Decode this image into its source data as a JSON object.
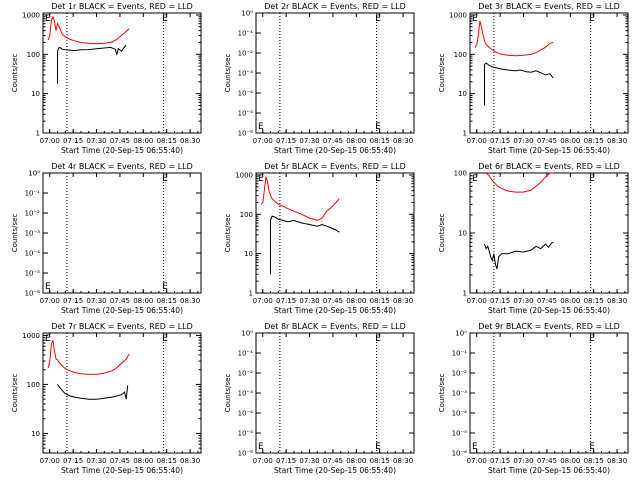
{
  "common": {
    "xlabel": "Start Time (20-Sep-15 06:55:40)",
    "ylabel": "Counts/sec",
    "xtick_labels": [
      "07:00",
      "07:15",
      "07:30",
      "07:45",
      "08:00",
      "08:15",
      "08:30"
    ],
    "vlines": [
      "07:11",
      "08:13"
    ],
    "marker_label": "E",
    "marker_time": "08:14",
    "colors": {
      "events": "#000000",
      "lld": "#ff0000"
    }
  },
  "chart_data": [
    {
      "type": "line",
      "title": "Det 1r BLACK = Events, RED = LLD",
      "x_unit": "time (HH:MM)",
      "ylog": true,
      "ytick_labels": [
        "1",
        "10",
        "100",
        "1000"
      ],
      "series": [
        {
          "name": "LLD",
          "color": "#ff0000",
          "x": [
            "06:59",
            "07:00",
            "07:01",
            "07:02",
            "07:03",
            "07:04",
            "07:05",
            "07:06",
            "07:08",
            "07:10",
            "07:13",
            "07:16",
            "07:20",
            "07:25",
            "07:30",
            "07:35",
            "07:40",
            "07:43",
            "07:46",
            "07:49",
            "07:51"
          ],
          "y": [
            230,
            300,
            700,
            900,
            700,
            400,
            600,
            500,
            330,
            280,
            240,
            220,
            200,
            190,
            185,
            190,
            205,
            240,
            300,
            380,
            450
          ]
        },
        {
          "name": "Events",
          "color": "#000000",
          "x": [
            "07:05",
            "07:05",
            "07:06",
            "07:07",
            "07:08",
            "07:10",
            "07:13",
            "07:16",
            "07:20",
            "07:25",
            "07:30",
            "07:35",
            "07:39",
            "07:42",
            "07:43",
            "07:44",
            "07:46",
            "07:48",
            "07:49"
          ],
          "y": [
            18,
            120,
            150,
            145,
            135,
            130,
            128,
            125,
            130,
            132,
            138,
            145,
            150,
            135,
            100,
            140,
            120,
            155,
            170
          ]
        }
      ]
    },
    {
      "type": "line",
      "title": "Det 2r BLACK = Events, RED = LLD",
      "x_unit": "time (HH:MM)",
      "ylog": true,
      "ytick_labels": [
        "10⁰",
        "10⁻¹",
        "10⁻²",
        "10⁻³",
        "10⁻⁴",
        "10⁻⁵",
        "10⁻⁶"
      ],
      "series": [
        {
          "name": "LLD",
          "color": "#ff0000",
          "x": [],
          "y": []
        },
        {
          "name": "Events",
          "color": "#000000",
          "x": [],
          "y": []
        }
      ]
    },
    {
      "type": "line",
      "title": "Det 3r BLACK = Events, RED = LLD",
      "x_unit": "time (HH:MM)",
      "ylog": true,
      "ytick_labels": [
        "1",
        "10",
        "100",
        "1000"
      ],
      "series": [
        {
          "name": "LLD",
          "color": "#ff0000",
          "x": [
            "06:59",
            "07:00",
            "07:01",
            "07:02",
            "07:03",
            "07:04",
            "07:05",
            "07:06",
            "07:08",
            "07:10",
            "07:13",
            "07:16",
            "07:20",
            "07:25",
            "07:30",
            "07:35",
            "07:38",
            "07:41",
            "07:44",
            "07:47",
            "07:49"
          ],
          "y": [
            150,
            180,
            300,
            700,
            500,
            320,
            220,
            180,
            150,
            130,
            110,
            100,
            95,
            92,
            95,
            100,
            110,
            130,
            150,
            190,
            200
          ]
        },
        {
          "name": "Events",
          "color": "#000000",
          "x": [
            "07:05",
            "07:05",
            "07:06",
            "07:08",
            "07:10",
            "07:13",
            "07:16",
            "07:20",
            "07:25",
            "07:28",
            "07:32",
            "07:35",
            "07:38",
            "07:41",
            "07:44",
            "07:47",
            "07:49"
          ],
          "y": [
            5,
            55,
            60,
            52,
            48,
            45,
            42,
            40,
            38,
            40,
            36,
            35,
            38,
            34,
            30,
            32,
            25
          ]
        }
      ]
    },
    {
      "type": "line",
      "title": "Det 4r BLACK = Events, RED = LLD",
      "x_unit": "time (HH:MM)",
      "ylog": true,
      "ytick_labels": [
        "10⁰",
        "10⁻¹",
        "10⁻²",
        "10⁻³",
        "10⁻⁴",
        "10⁻⁵",
        "10⁻⁶"
      ],
      "series": [
        {
          "name": "LLD",
          "color": "#ff0000",
          "x": [],
          "y": []
        },
        {
          "name": "Events",
          "color": "#000000",
          "x": [],
          "y": []
        }
      ]
    },
    {
      "type": "line",
      "title": "Det 5r BLACK = Events, RED = LLD",
      "x_unit": "time (HH:MM)",
      "ylog": true,
      "ytick_labels": [
        "1",
        "10",
        "100",
        "1000"
      ],
      "series": [
        {
          "name": "LLD",
          "color": "#ff0000",
          "x": [
            "06:59",
            "07:00",
            "07:01",
            "07:02",
            "07:03",
            "07:04",
            "07:05",
            "07:06",
            "07:08",
            "07:10",
            "07:13",
            "07:16",
            "07:20",
            "07:25",
            "07:30",
            "07:35",
            "07:38",
            "07:41",
            "07:44",
            "07:47",
            "07:49"
          ],
          "y": [
            180,
            200,
            400,
            900,
            700,
            400,
            300,
            250,
            210,
            180,
            160,
            140,
            120,
            100,
            80,
            70,
            80,
            120,
            150,
            200,
            250
          ]
        },
        {
          "name": "Events",
          "color": "#000000",
          "x": [
            "07:05",
            "07:05",
            "07:06",
            "07:08",
            "07:10",
            "07:13",
            "07:16",
            "07:20",
            "07:25",
            "07:30",
            "07:35",
            "07:38",
            "07:41",
            "07:44",
            "07:47",
            "07:49"
          ],
          "y": [
            3,
            70,
            90,
            85,
            75,
            70,
            65,
            70,
            60,
            55,
            50,
            55,
            50,
            45,
            40,
            35
          ]
        }
      ]
    },
    {
      "type": "line",
      "title": "Det 6r BLACK = Events, RED = LLD",
      "x_unit": "time (HH:MM)",
      "ylog": true,
      "ytick_labels": [
        "1",
        "10",
        "100"
      ],
      "series": [
        {
          "name": "LLD",
          "color": "#ff0000",
          "x": [
            "07:06",
            "07:08",
            "07:10",
            "07:13",
            "07:16",
            "07:20",
            "07:25",
            "07:30",
            "07:35",
            "07:38",
            "07:41",
            "07:44",
            "07:47",
            "07:49"
          ],
          "y": [
            100,
            90,
            75,
            62,
            55,
            50,
            48,
            48,
            52,
            60,
            70,
            85,
            100,
            110
          ]
        },
        {
          "name": "Events",
          "color": "#000000",
          "x": [
            "07:05",
            "07:06",
            "07:07",
            "07:08",
            "07:09",
            "07:10",
            "07:11",
            "07:12",
            "07:13",
            "07:14",
            "07:16",
            "07:20",
            "07:25",
            "07:30",
            "07:35",
            "07:38",
            "07:41",
            "07:44",
            "07:46",
            "07:48",
            "07:49"
          ],
          "y": [
            6.5,
            5.5,
            6,
            5,
            4,
            3.5,
            4.5,
            3,
            2.5,
            4,
            4.5,
            4.5,
            5,
            4.8,
            5.2,
            6,
            5.5,
            6.5,
            5.8,
            6.8,
            7
          ]
        }
      ]
    },
    {
      "type": "line",
      "title": "Det 7r BLACK = Events, RED = LLD",
      "x_unit": "time (HH:MM)",
      "ylog": true,
      "ytick_labels": [
        "10",
        "100",
        "1000"
      ],
      "series": [
        {
          "name": "LLD",
          "color": "#ff0000",
          "x": [
            "06:59",
            "07:00",
            "07:01",
            "07:02",
            "07:03",
            "07:04",
            "07:05",
            "07:06",
            "07:08",
            "07:10",
            "07:13",
            "07:16",
            "07:20",
            "07:25",
            "07:30",
            "07:35",
            "07:40",
            "07:43",
            "07:46",
            "07:49",
            "07:51"
          ],
          "y": [
            220,
            300,
            650,
            800,
            500,
            330,
            320,
            280,
            240,
            210,
            190,
            175,
            165,
            160,
            160,
            170,
            190,
            220,
            270,
            330,
            420
          ]
        },
        {
          "name": "Events",
          "color": "#000000",
          "x": [
            "07:05",
            "07:06",
            "07:08",
            "07:10",
            "07:13",
            "07:16",
            "07:20",
            "07:25",
            "07:30",
            "07:35",
            "07:40",
            "07:43",
            "07:46",
            "07:48",
            "07:49",
            "07:50"
          ],
          "y": [
            100,
            90,
            75,
            65,
            58,
            55,
            52,
            50,
            50,
            52,
            55,
            58,
            62,
            70,
            50,
            95
          ]
        }
      ]
    },
    {
      "type": "line",
      "title": "Det 8r BLACK = Events, RED = LLD",
      "x_unit": "time (HH:MM)",
      "ylog": true,
      "ytick_labels": [
        "10⁰",
        "10⁻¹",
        "10⁻²",
        "10⁻³",
        "10⁻⁴",
        "10⁻⁵",
        "10⁻⁶"
      ],
      "series": [
        {
          "name": "LLD",
          "color": "#ff0000",
          "x": [],
          "y": []
        },
        {
          "name": "Events",
          "color": "#000000",
          "x": [],
          "y": []
        }
      ]
    },
    {
      "type": "line",
      "title": "Det 9r BLACK = Events, RED = LLD",
      "x_unit": "time (HH:MM)",
      "ylog": true,
      "ytick_labels": [
        "10⁰",
        "10⁻¹",
        "10⁻²",
        "10⁻³",
        "10⁻⁴",
        "10⁻⁵",
        "10⁻⁶"
      ],
      "series": [
        {
          "name": "LLD",
          "color": "#ff0000",
          "x": [],
          "y": []
        },
        {
          "name": "Events",
          "color": "#000000",
          "x": [],
          "y": []
        }
      ]
    }
  ]
}
